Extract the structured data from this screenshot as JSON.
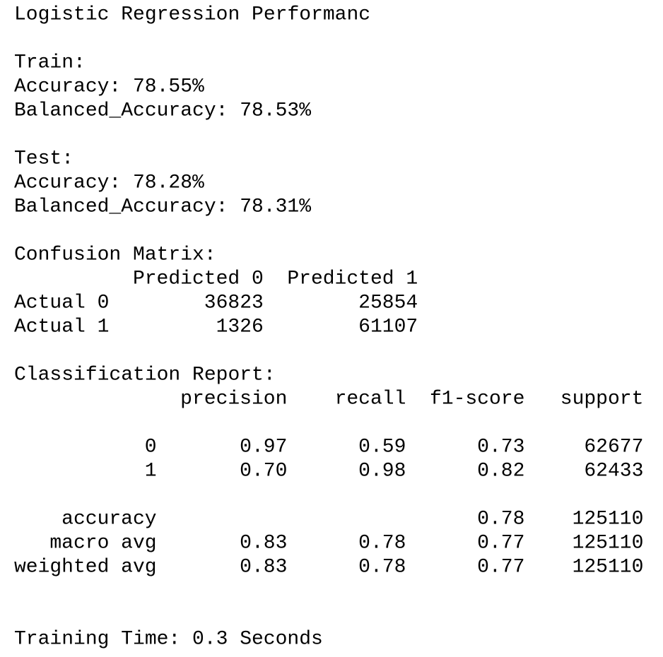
{
  "title": "Logistic Regression Performanc",
  "train": {
    "heading": "Train:",
    "rows": [
      {
        "label": "Accuracy:",
        "value": "78.55%"
      },
      {
        "label": "Balanced_Accuracy:",
        "value": "78.53%"
      }
    ]
  },
  "test": {
    "heading": "Test:",
    "rows": [
      {
        "label": "Accuracy:",
        "value": "78.28%"
      },
      {
        "label": "Balanced_Accuracy:",
        "value": "78.31%"
      }
    ]
  },
  "confusion_matrix": {
    "heading": "Confusion Matrix:",
    "columns": [
      "Predicted 0",
      "Predicted 1"
    ],
    "rows": [
      {
        "label": "Actual 0",
        "values": [
          36823,
          25854
        ]
      },
      {
        "label": "Actual 1",
        "values": [
          1326,
          61107
        ]
      }
    ]
  },
  "classification_report": {
    "heading": "Classification Report:",
    "columns": [
      "precision",
      "recall",
      "f1-score",
      "support"
    ],
    "rows": [
      {
        "label": "0",
        "values": [
          "0.97",
          "0.59",
          "0.73",
          "62677"
        ]
      },
      {
        "label": "1",
        "values": [
          "0.70",
          "0.98",
          "0.82",
          "62433"
        ]
      },
      {
        "label": "accuracy",
        "values": [
          null,
          null,
          "0.78",
          "125110"
        ]
      },
      {
        "label": "macro avg",
        "values": [
          "0.83",
          "0.78",
          "0.77",
          "125110"
        ]
      },
      {
        "label": "weighted avg",
        "values": [
          "0.83",
          "0.78",
          "0.77",
          "125110"
        ]
      }
    ]
  },
  "training_time": {
    "label": "Training Time:",
    "value": "0.3",
    "unit": "Seconds"
  }
}
